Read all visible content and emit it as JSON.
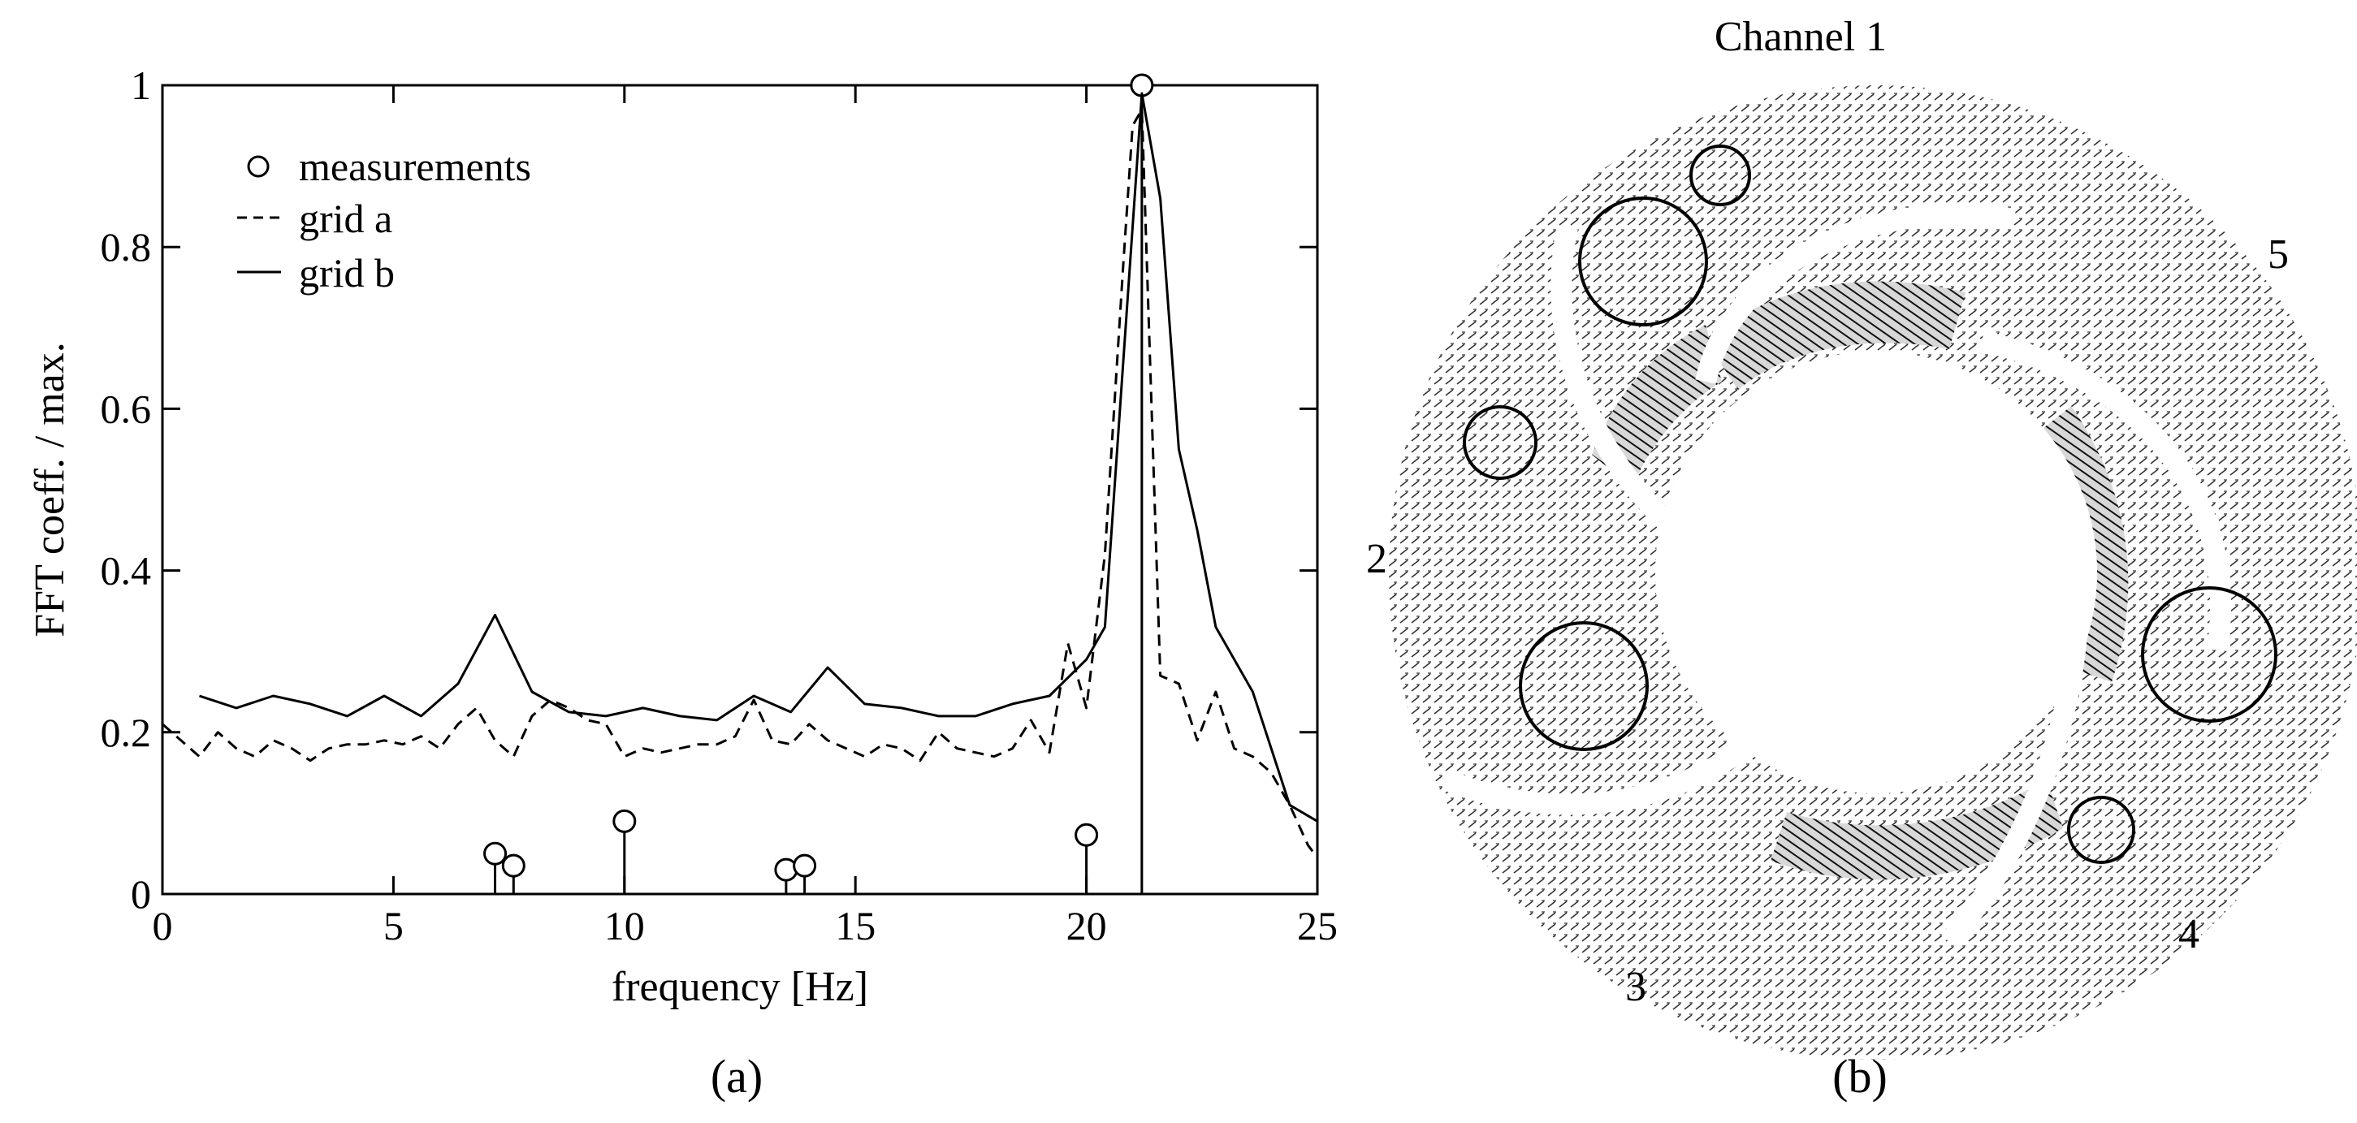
{
  "panels": {
    "a_label": "(a)",
    "b_label": "(b)"
  },
  "chart_data": {
    "type": "line",
    "xlabel": "frequency [Hz]",
    "ylabel": "FFT coeff.  / max.",
    "xlim": [
      0,
      25
    ],
    "ylim": [
      0,
      1
    ],
    "xticks": [
      0,
      5,
      10,
      15,
      20,
      25
    ],
    "yticks": [
      0,
      0.2,
      0.4,
      0.6,
      0.8,
      1
    ],
    "ytick_labels": [
      "0",
      "0.2",
      "0.4",
      "0.6",
      "0.8",
      "1"
    ],
    "grid": false,
    "legend_position": "top-left",
    "series": [
      {
        "name": "measurements",
        "style": "stem-circle",
        "x": [
          7.2,
          7.6,
          10.0,
          13.5,
          13.9,
          20.0,
          21.2
        ],
        "y": [
          0.05,
          0.035,
          0.09,
          0.03,
          0.035,
          0.073,
          1.0
        ]
      },
      {
        "name": "grid a",
        "style": "dashed",
        "x": [
          0,
          0.4,
          0.8,
          1.2,
          1.6,
          2.0,
          2.4,
          2.8,
          3.2,
          3.6,
          4.0,
          4.4,
          4.8,
          5.2,
          5.6,
          6.0,
          6.4,
          6.8,
          7.2,
          7.6,
          8.0,
          8.4,
          8.8,
          9.2,
          9.6,
          10.0,
          10.4,
          10.8,
          11.2,
          11.6,
          12.0,
          12.4,
          12.8,
          13.2,
          13.6,
          14.0,
          14.4,
          14.8,
          15.2,
          15.6,
          16.0,
          16.4,
          16.8,
          17.2,
          17.6,
          18.0,
          18.4,
          18.8,
          19.2,
          19.6,
          20.0,
          20.4,
          20.8,
          21.0,
          21.2,
          21.6,
          22.0,
          22.4,
          22.8,
          23.2,
          23.6,
          24.0,
          24.4,
          24.8,
          25.0
        ],
        "y": [
          0.21,
          0.19,
          0.17,
          0.2,
          0.18,
          0.17,
          0.19,
          0.18,
          0.165,
          0.18,
          0.185,
          0.185,
          0.19,
          0.185,
          0.195,
          0.18,
          0.21,
          0.23,
          0.19,
          0.17,
          0.22,
          0.24,
          0.23,
          0.215,
          0.21,
          0.17,
          0.18,
          0.175,
          0.18,
          0.185,
          0.185,
          0.195,
          0.24,
          0.19,
          0.185,
          0.21,
          0.19,
          0.18,
          0.17,
          0.185,
          0.18,
          0.165,
          0.2,
          0.18,
          0.175,
          0.17,
          0.18,
          0.215,
          0.175,
          0.31,
          0.23,
          0.42,
          0.78,
          0.95,
          0.97,
          0.27,
          0.26,
          0.19,
          0.25,
          0.18,
          0.17,
          0.15,
          0.11,
          0.06,
          0.045
        ]
      },
      {
        "name": "grid b",
        "style": "solid",
        "x": [
          0.8,
          1.6,
          2.4,
          3.2,
          4.0,
          4.8,
          5.6,
          6.4,
          7.2,
          8.0,
          8.8,
          9.6,
          10.4,
          11.2,
          12.0,
          12.8,
          13.6,
          14.4,
          15.2,
          16.0,
          16.8,
          17.6,
          18.4,
          19.2,
          20.0,
          20.4,
          20.8,
          21.2,
          21.6,
          22.0,
          22.4,
          22.8,
          23.6,
          24.4,
          25.0
        ],
        "y": [
          0.245,
          0.23,
          0.245,
          0.235,
          0.22,
          0.245,
          0.22,
          0.26,
          0.345,
          0.25,
          0.225,
          0.22,
          0.23,
          0.22,
          0.215,
          0.245,
          0.225,
          0.28,
          0.235,
          0.23,
          0.22,
          0.22,
          0.235,
          0.245,
          0.29,
          0.33,
          0.66,
          0.99,
          0.86,
          0.55,
          0.45,
          0.33,
          0.25,
          0.11,
          0.09
        ]
      }
    ]
  },
  "flow_panel": {
    "title": "Channel 1",
    "channel_labels": [
      "2",
      "3",
      "4",
      "5"
    ]
  }
}
